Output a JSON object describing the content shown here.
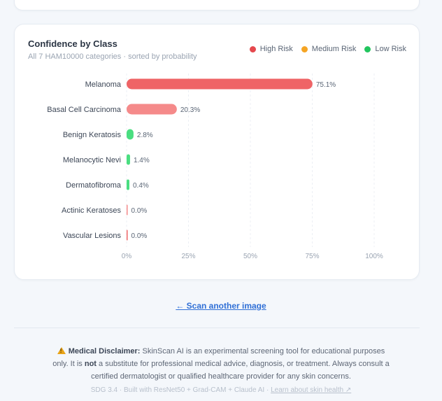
{
  "card": {
    "title": "Confidence by Class",
    "subtitle": "All 7 HAM10000 categories · sorted by probability"
  },
  "legend": [
    {
      "label": "High Risk",
      "color": "#e5484d"
    },
    {
      "label": "Medium Risk",
      "color": "#f5a524"
    },
    {
      "label": "Low Risk",
      "color": "#22c55e"
    }
  ],
  "chart_data": {
    "type": "bar",
    "orientation": "horizontal",
    "title": "Confidence by Class",
    "xlim": [
      0,
      100
    ],
    "x_ticks": [
      "0%",
      "25%",
      "50%",
      "75%",
      "100%"
    ],
    "grid": true,
    "legend_position": "top-right",
    "categories": [
      "Melanoma",
      "Basal Cell Carcinoma",
      "Benign Keratosis",
      "Melanocytic Nevi",
      "Dermatofibroma",
      "Actinic Keratoses",
      "Vascular Lesions"
    ],
    "values": [
      75.1,
      20.3,
      2.8,
      1.4,
      0.4,
      0.0,
      0.0
    ],
    "value_labels": [
      "75.1%",
      "20.3%",
      "2.8%",
      "1.4%",
      "0.4%",
      "0.0%",
      "0.0%"
    ],
    "bar_colors": [
      "#ef6466",
      "#f58a8a",
      "#4ade80",
      "#4ade80",
      "#4ade80",
      "#f58a8a",
      "#ef6466"
    ]
  },
  "scan_link": "← Scan another image",
  "disclaimer": {
    "label": "Medical Disclaimer:",
    "text_1": " SkinScan AI is an experimental screening tool for educational purposes only. It is ",
    "emph": "not",
    "text_2": " a substitute for professional medical advice, diagnosis, or treatment. Always consult a certified dermatologist or qualified healthcare provider for any skin concerns."
  },
  "footer": {
    "text": "SDG 3.4 · Built with ResNet50 + Grad-CAM + Claude AI · ",
    "link": "Learn about skin health ↗"
  }
}
